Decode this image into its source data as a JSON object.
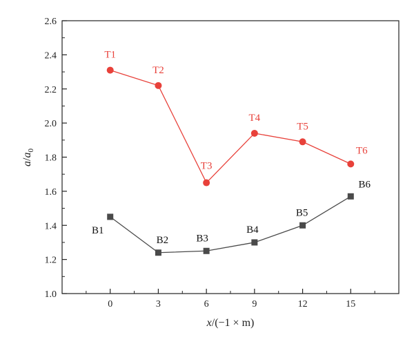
{
  "chart_data": {
    "type": "line",
    "xlabel": "x/(−1 × m)",
    "ylabel": "a/a0",
    "x": [
      0,
      3,
      6,
      9,
      12,
      15
    ],
    "xlim": [
      -3.0,
      18.0
    ],
    "ylim": [
      1.0,
      2.6
    ],
    "xticks": [
      "0",
      "3",
      "6",
      "9",
      "12",
      "15"
    ],
    "yticks": [
      "1.0",
      "1.2",
      "1.4",
      "1.6",
      "1.8",
      "2.0",
      "2.2",
      "2.4",
      "2.6"
    ],
    "grid": false,
    "series": [
      {
        "color": "#e8413a",
        "marker": "circle",
        "values": [
          2.31,
          2.22,
          1.65,
          1.94,
          1.89,
          1.76
        ],
        "labels": [
          "T1",
          "T2",
          "T3",
          "T4",
          "T5",
          "T6"
        ]
      },
      {
        "color": "#4a4a4a",
        "marker": "square",
        "values": [
          1.45,
          1.24,
          1.25,
          1.3,
          1.4,
          1.57
        ],
        "labels": [
          "B1",
          "B2",
          "B3",
          "B4",
          "B5",
          "B6"
        ]
      }
    ]
  }
}
